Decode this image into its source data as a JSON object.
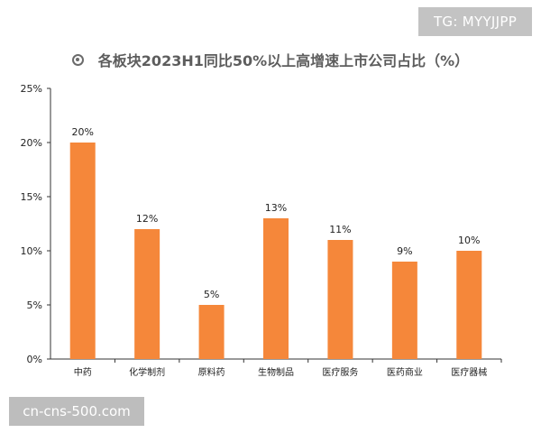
{
  "watermarks": {
    "top": "TG: MYYJJPP",
    "bottom": "cn-cns-500.com"
  },
  "title_icon": "bullet-circle-icon",
  "colors": {
    "bar": "#F5873A",
    "axis": "#333333"
  },
  "chart_data": {
    "type": "bar",
    "title": "各板块2023H1同比50%以上高增速上市公司占比（%）",
    "categories": [
      "中药",
      "化学制剂",
      "原料药",
      "生物制品",
      "医疗服务",
      "医药商业",
      "医疗器械"
    ],
    "values": [
      20,
      12,
      5,
      13,
      11,
      9,
      10
    ],
    "data_labels": [
      "20%",
      "12%",
      "5%",
      "13%",
      "11%",
      "9%",
      "10%"
    ],
    "y_ticks": [
      0,
      5,
      10,
      15,
      20,
      25
    ],
    "y_tick_labels": [
      "0%",
      "5%",
      "10%",
      "15%",
      "20%",
      "25%"
    ],
    "ylim": [
      0,
      25
    ],
    "xlabel": "",
    "ylabel": "",
    "grid": false,
    "legend": "none"
  }
}
